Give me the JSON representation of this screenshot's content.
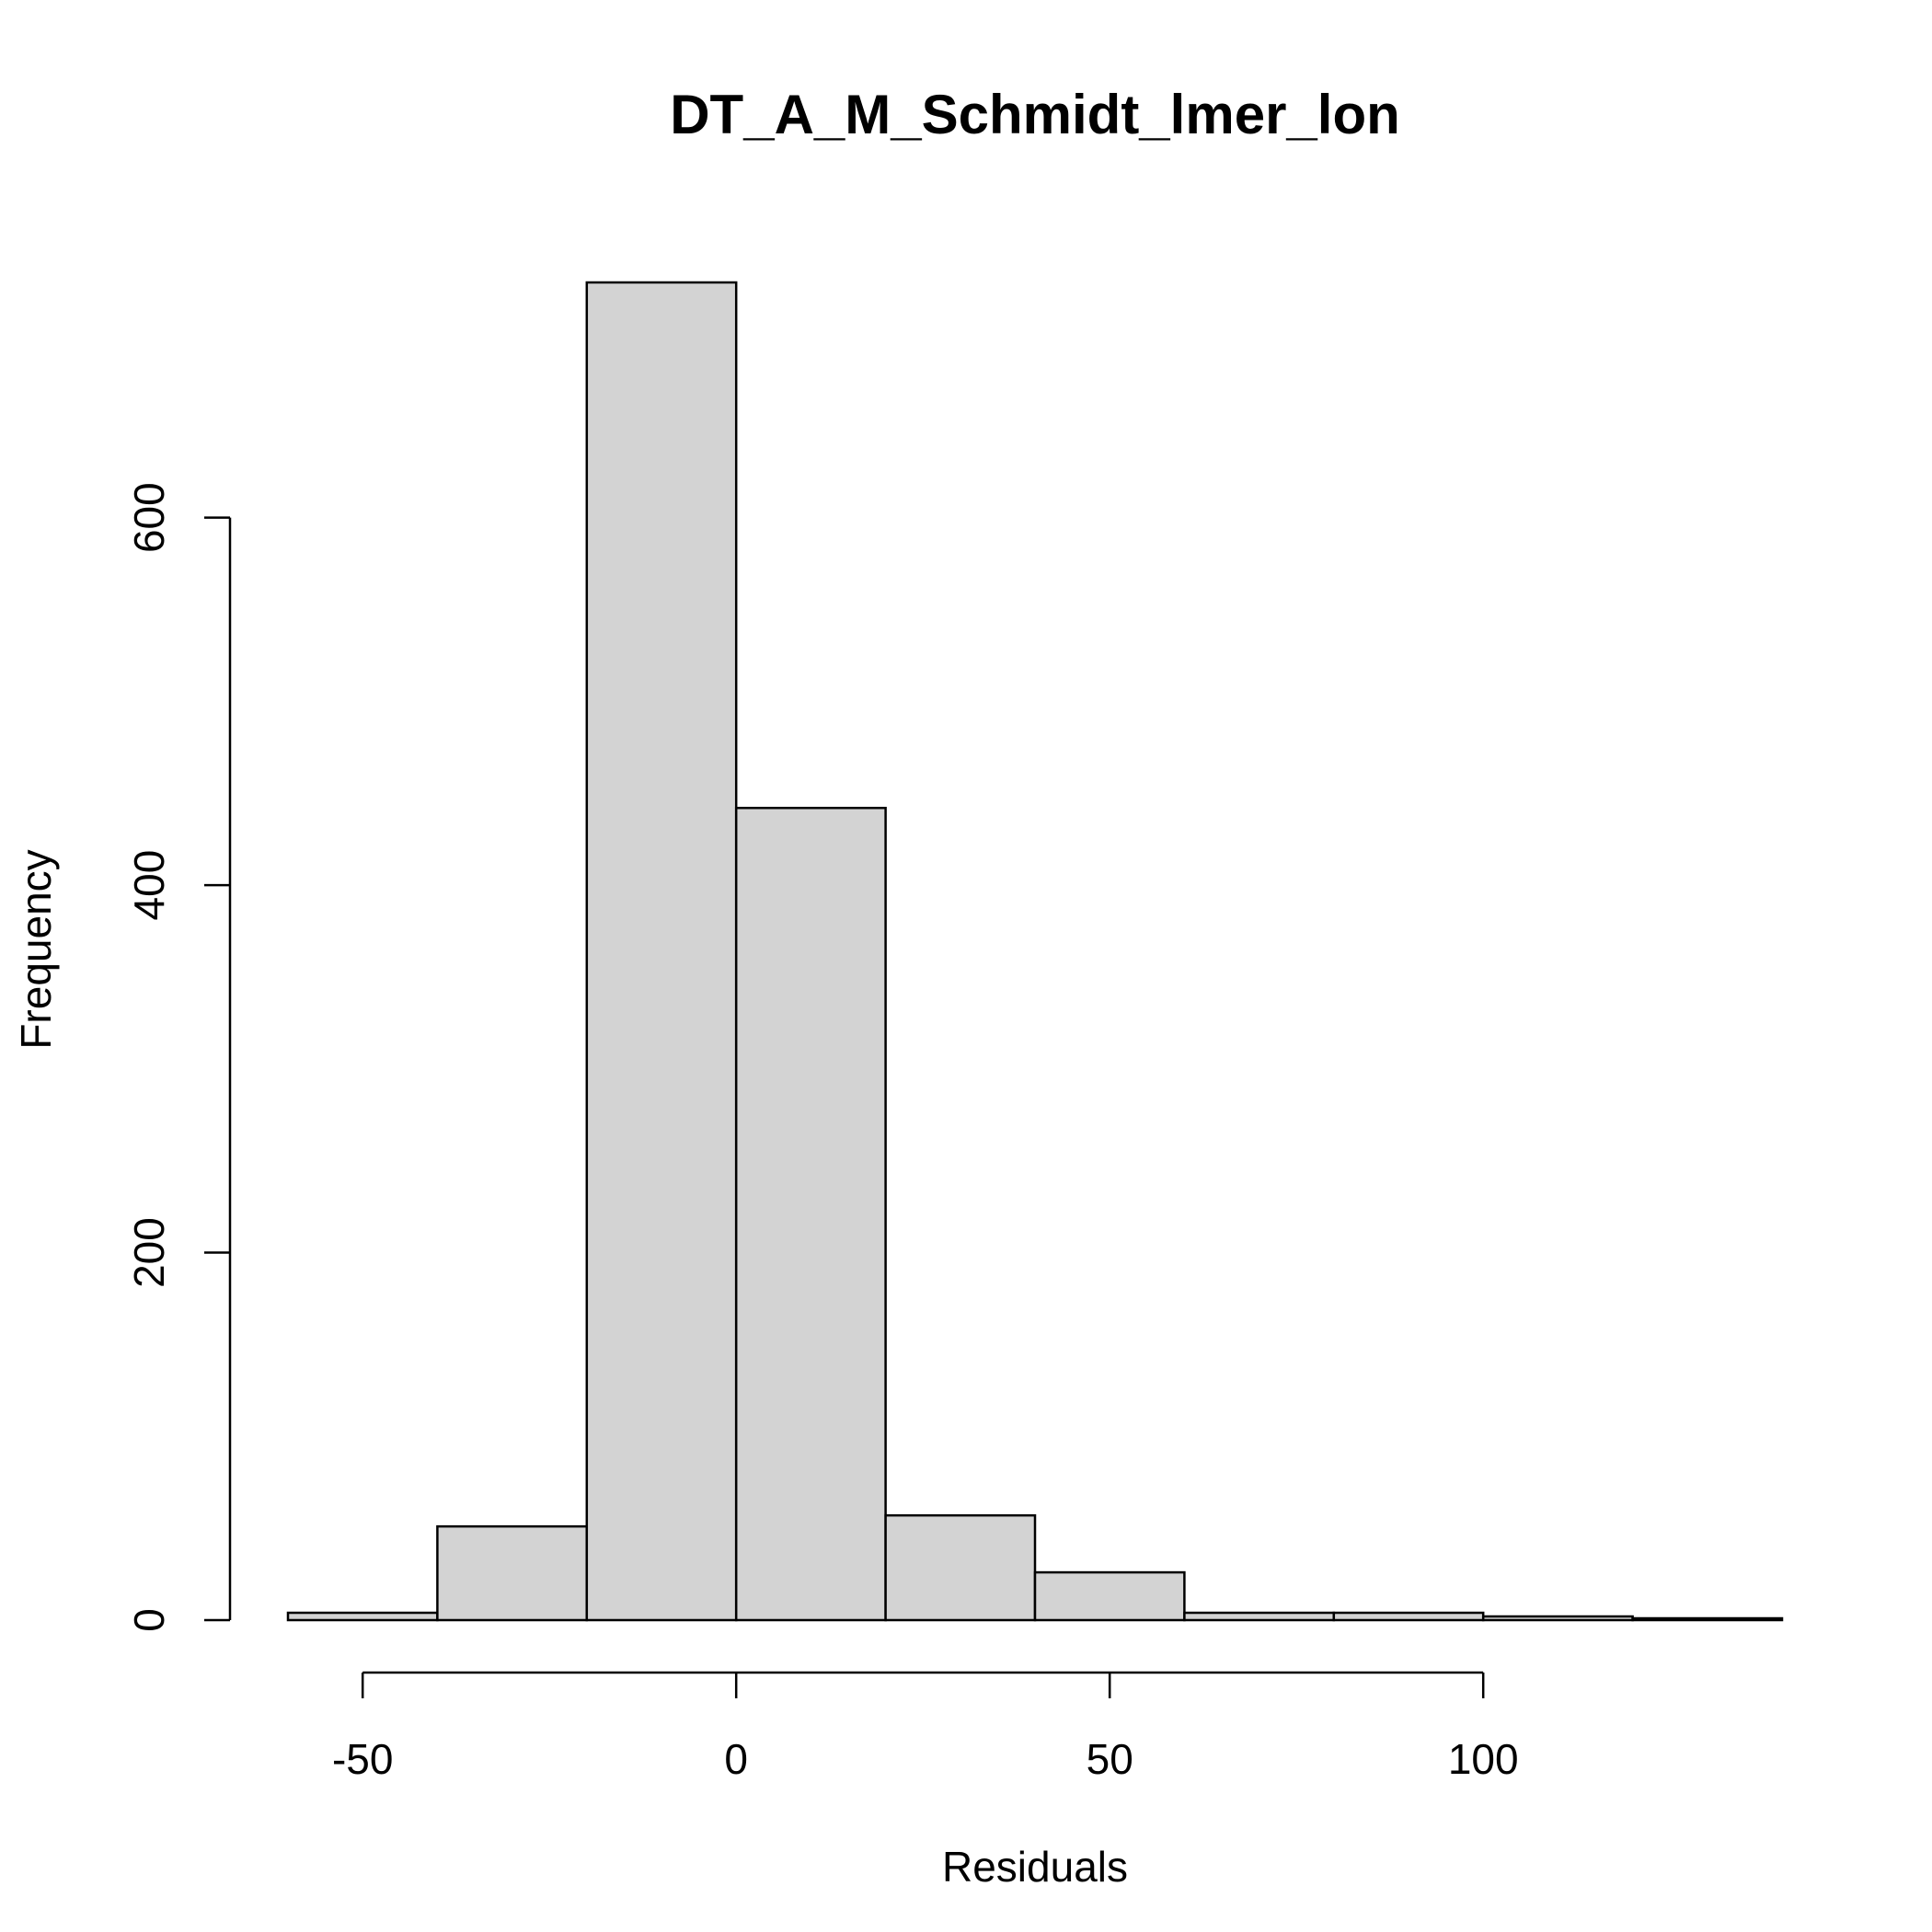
{
  "chart_data": {
    "type": "histogram",
    "title": "DT_A_M_Schmidt_lmer_lon",
    "xlabel": "Residuals",
    "ylabel": "Frequency",
    "bins": [
      {
        "start": -60,
        "end": -40,
        "count": 4
      },
      {
        "start": -40,
        "end": -20,
        "count": 51
      },
      {
        "start": -20,
        "end": 0,
        "count": 728
      },
      {
        "start": 0,
        "end": 20,
        "count": 442
      },
      {
        "start": 20,
        "end": 40,
        "count": 57
      },
      {
        "start": 40,
        "end": 60,
        "count": 26
      },
      {
        "start": 60,
        "end": 80,
        "count": 4
      },
      {
        "start": 80,
        "end": 100,
        "count": 4
      },
      {
        "start": 100,
        "end": 120,
        "count": 2
      },
      {
        "start": 120,
        "end": 140,
        "count": 1
      }
    ],
    "x_ticks": [
      -50,
      0,
      50,
      100
    ],
    "x_tick_labels": [
      "-50",
      "0",
      "50",
      "100"
    ],
    "y_ticks": [
      0,
      200,
      400,
      600
    ],
    "y_tick_labels": [
      "0",
      "200",
      "400",
      "600"
    ],
    "xlim": [
      -60,
      140
    ],
    "ylim": [
      0,
      728
    ]
  }
}
